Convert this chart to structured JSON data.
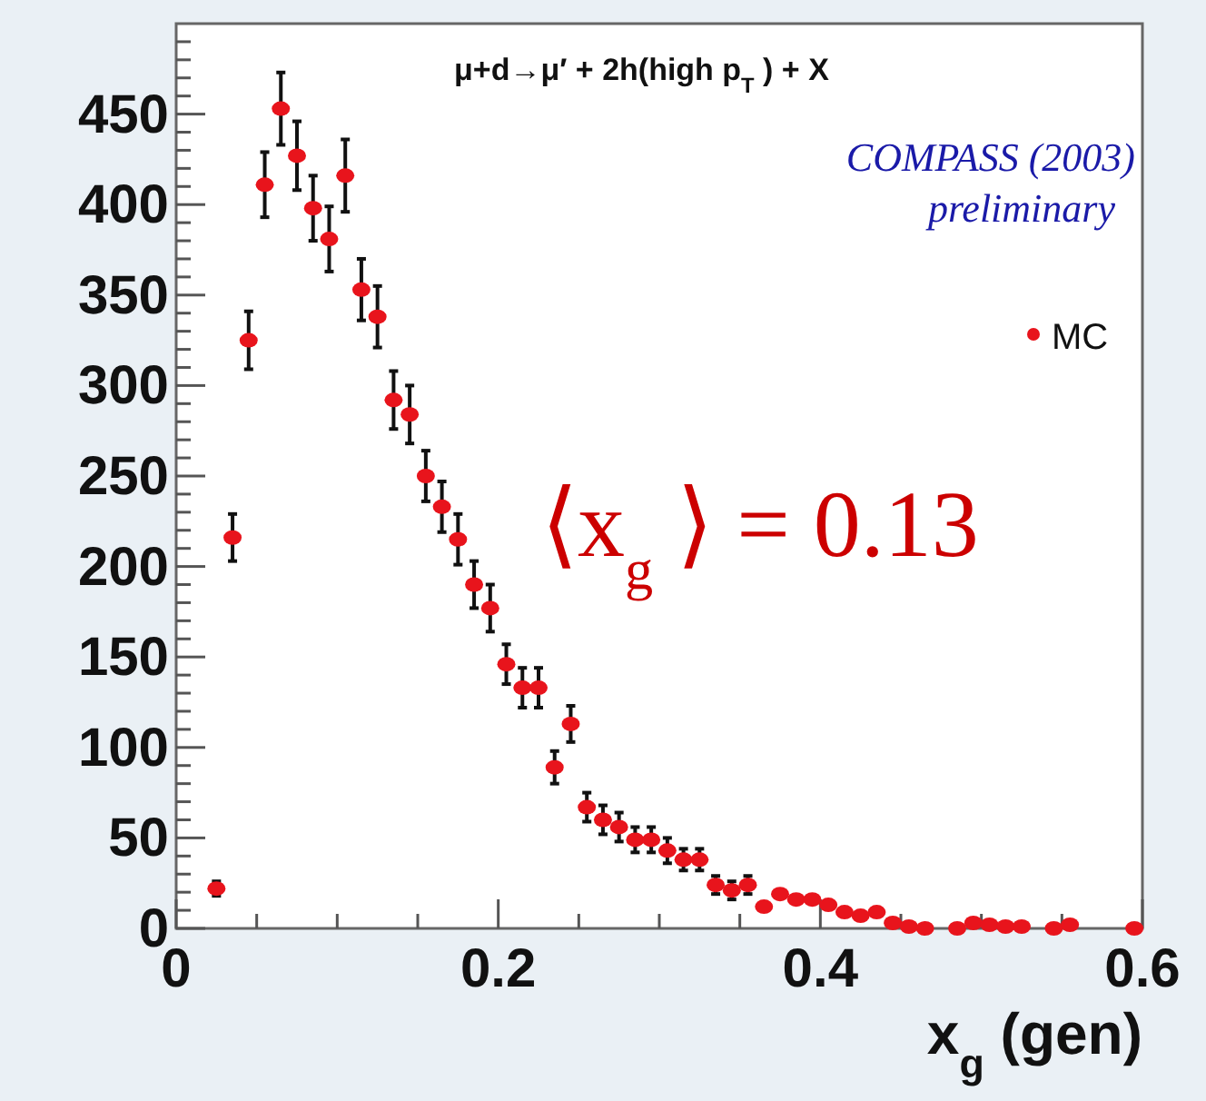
{
  "chart_data": {
    "type": "scatter",
    "xlabel": "x$_{g}$ (gen)",
    "xlim": [
      0,
      0.6
    ],
    "ylim": [
      0,
      500
    ],
    "xticks": [
      0,
      {
        "value": 0.05,
        "label": null
      },
      {
        "value": 0.1,
        "label": null
      },
      {
        "value": 0.15,
        "label": null
      },
      0.2,
      {
        "value": 0.25,
        "label": null
      },
      {
        "value": 0.3,
        "label": null
      },
      {
        "value": 0.35,
        "label": null
      },
      0.4,
      {
        "value": 0.45,
        "label": null
      },
      {
        "value": 0.5,
        "label": null
      },
      {
        "value": 0.55,
        "label": null
      },
      0.6
    ],
    "yticks": [
      0,
      {
        "value": 10,
        "label": null
      },
      {
        "value": 20,
        "label": null
      },
      {
        "value": 30,
        "label": null
      },
      {
        "value": 40,
        "label": null
      },
      50,
      {
        "value": 60,
        "label": null
      },
      {
        "value": 70,
        "label": null
      },
      {
        "value": 80,
        "label": null
      },
      {
        "value": 90,
        "label": null
      },
      100,
      {
        "value": 110,
        "label": null
      },
      {
        "value": 120,
        "label": null
      },
      {
        "value": 130,
        "label": null
      },
      {
        "value": 140,
        "label": null
      },
      150,
      {
        "value": 160,
        "label": null
      },
      {
        "value": 170,
        "label": null
      },
      {
        "value": 180,
        "label": null
      },
      {
        "value": 190,
        "label": null
      },
      200,
      {
        "value": 210,
        "label": null
      },
      {
        "value": 220,
        "label": null
      },
      {
        "value": 230,
        "label": null
      },
      {
        "value": 240,
        "label": null
      },
      250,
      {
        "value": 260,
        "label": null
      },
      {
        "value": 270,
        "label": null
      },
      {
        "value": 280,
        "label": null
      },
      {
        "value": 290,
        "label": null
      },
      300,
      {
        "value": 310,
        "label": null
      },
      {
        "value": 320,
        "label": null
      },
      {
        "value": 330,
        "label": null
      },
      {
        "value": 340,
        "label": null
      },
      350,
      {
        "value": 360,
        "label": null
      },
      {
        "value": 370,
        "label": null
      },
      {
        "value": 380,
        "label": null
      },
      {
        "value": 390,
        "label": null
      },
      400,
      {
        "value": 410,
        "label": null
      },
      {
        "value": 420,
        "label": null
      },
      {
        "value": 430,
        "label": null
      },
      {
        "value": 440,
        "label": null
      },
      450,
      {
        "value": 460,
        "label": null
      },
      {
        "value": 470,
        "label": null
      },
      {
        "value": 480,
        "label": null
      },
      {
        "value": 490,
        "label": null
      }
    ],
    "grid": false,
    "legend": "top right",
    "marker": "circle",
    "annotations": [
      "μ+d→μ′ + 2h(high p$_{T}$) + X",
      "COMPASS (2003)",
      "preliminary",
      "⟨x$_{g}$⟩ = 0.13"
    ],
    "series": [
      {
        "name": "MC",
        "color": "#e8141c",
        "x": [
          0.025,
          0.035,
          0.045,
          0.055,
          0.065,
          0.075,
          0.085,
          0.095,
          0.105,
          0.115,
          0.125,
          0.135,
          0.145,
          0.155,
          0.165,
          0.175,
          0.185,
          0.195,
          0.205,
          0.215,
          0.225,
          0.235,
          0.245,
          0.255,
          0.265,
          0.275,
          0.285,
          0.295,
          0.305,
          0.315,
          0.325,
          0.335,
          0.345,
          0.355,
          0.365,
          0.375,
          0.385,
          0.395,
          0.405,
          0.415,
          0.425,
          0.435,
          0.445,
          0.455,
          0.465,
          0.485,
          0.495,
          0.505,
          0.515,
          0.525,
          0.545,
          0.555,
          0.595
        ],
        "values": [
          22,
          216,
          325,
          411,
          453,
          427,
          398,
          381,
          416,
          353,
          338,
          292,
          284,
          250,
          233,
          215,
          190,
          177,
          146,
          133,
          133,
          89,
          113,
          67,
          60,
          56,
          49,
          49,
          43,
          38,
          38,
          24,
          21,
          24,
          12,
          19,
          16,
          16,
          13,
          9,
          7,
          9,
          3,
          1,
          0,
          0,
          3,
          2,
          1,
          1,
          0,
          2,
          0
        ],
        "errors": [
          4,
          13,
          16,
          18,
          20,
          19,
          18,
          18,
          20,
          17,
          17,
          16,
          16,
          14,
          14,
          14,
          13,
          13,
          11,
          11,
          11,
          9,
          10,
          8,
          8,
          8,
          7,
          7,
          7,
          6,
          6,
          5,
          5,
          5,
          null,
          null,
          null,
          null,
          null,
          null,
          null,
          null,
          null,
          null,
          null,
          null,
          null,
          null,
          null,
          null,
          null,
          null,
          null
        ]
      }
    ]
  }
}
